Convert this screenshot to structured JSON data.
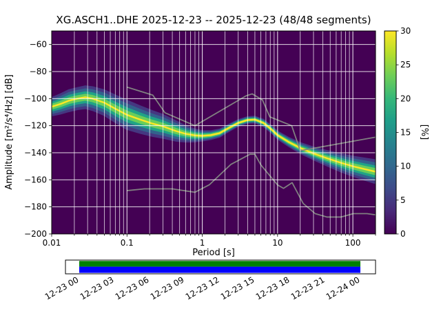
{
  "chart_data": {
    "type": "heatmap",
    "title": "XG.ASCH1..DHE   2025-12-23 -- 2025-12-23  (48/48 segments)",
    "xlabel": "Period [s]",
    "ylabel": "Amplitude [m²/s⁴/Hz] [dB]",
    "xscale": "log",
    "xlim": [
      0.01,
      200
    ],
    "ylim": [
      -200,
      -50
    ],
    "grid": true,
    "background_color": "#440154",
    "mode_color": "#fde725",
    "band_levels": [
      {
        "scale": 1.35,
        "color": "#453781"
      },
      {
        "scale": 1.0,
        "color": "#33628d"
      },
      {
        "scale": 0.65,
        "color": "#20a386"
      },
      {
        "scale": 0.35,
        "color": "#69cd5b"
      }
    ],
    "xticks": {
      "values": [
        0.01,
        0.1,
        1,
        10,
        100
      ],
      "labels": [
        "0.01",
        "0.1",
        "1",
        "10",
        "100"
      ]
    },
    "yticks": {
      "values": [
        -200,
        -180,
        -160,
        -140,
        -120,
        -100,
        -80,
        -60
      ],
      "labels": [
        "−200",
        "−180",
        "−160",
        "−140",
        "−120",
        "−100",
        "−80",
        "−60"
      ]
    },
    "colorbar": {
      "label": "[%]",
      "lim": [
        0,
        30
      ],
      "ticks": [
        0,
        5,
        10,
        15,
        20,
        25,
        30
      ],
      "tick_labels": [
        "0",
        "5",
        "10",
        "15",
        "20",
        "25",
        "30"
      ],
      "colors": [
        "#440154",
        "#482878",
        "#3e4a89",
        "#31688e",
        "#26828e",
        "#1f9e89",
        "#35b779",
        "#6ece58",
        "#b5de2b",
        "#fde725"
      ]
    },
    "psd_mode": {
      "name": "PSD probability ridge (mode)",
      "period_s": [
        0.01,
        0.013,
        0.017,
        0.022,
        0.028,
        0.035,
        0.05,
        0.07,
        0.1,
        0.15,
        0.22,
        0.3,
        0.45,
        0.6,
        0.8,
        1,
        1.3,
        1.7,
        2.2,
        3,
        4,
        5,
        6.5,
        8,
        10,
        14,
        20,
        30,
        45,
        70,
        100,
        140,
        200
      ],
      "db": [
        -106,
        -104,
        -101.5,
        -100,
        -99,
        -100,
        -103,
        -107.5,
        -112,
        -115.5,
        -118.5,
        -120.5,
        -124,
        -126,
        -127.2,
        -127.5,
        -127,
        -125.5,
        -122,
        -118,
        -115.8,
        -115.5,
        -118,
        -122,
        -127,
        -132,
        -136.5,
        -140.5,
        -144,
        -147.5,
        -150,
        -152,
        -154
      ],
      "spread_db": [
        5,
        5.5,
        6,
        6,
        6.2,
        6.5,
        7,
        7.5,
        8,
        7.5,
        7,
        6.5,
        5.5,
        4.5,
        3.5,
        2.8,
        2.4,
        2.2,
        2,
        1.8,
        1.8,
        1.8,
        2,
        2,
        2.2,
        2.5,
        3,
        3.5,
        4.2,
        5,
        5.5,
        6,
        6.5
      ]
    },
    "noise_models": [
      {
        "name": "NHNM",
        "color": "#808080",
        "period_s": [
          0.1,
          0.22,
          0.32,
          0.8,
          3.8,
          4.6,
          6.3,
          7.9,
          15.4,
          20,
          50,
          100,
          200
        ],
        "db": [
          -91.5,
          -97.4,
          -110.5,
          -120,
          -98,
          -96.5,
          -101,
          -113.5,
          -120,
          -138.5,
          -134.5,
          -131.5,
          -128.5
        ]
      },
      {
        "name": "NLNM",
        "color": "#808080",
        "period_s": [
          0.1,
          0.17,
          0.4,
          0.8,
          1.24,
          2.4,
          4.3,
          5,
          6,
          10,
          12,
          15.6,
          21.9,
          31.6,
          45,
          70,
          101,
          154,
          200
        ],
        "db": [
          -168,
          -166.7,
          -166.7,
          -169.2,
          -163.7,
          -148.6,
          -141.1,
          -141.1,
          -149,
          -163.8,
          -166.3,
          -162.1,
          -177.5,
          -185,
          -187.5,
          -187.5,
          -185,
          -185,
          -185.9
        ]
      }
    ],
    "timeline": {
      "labels": [
        "12-23 00",
        "12-23 03",
        "12-23 06",
        "12-23 09",
        "12-23 12",
        "12-23 15",
        "12-23 18",
        "12-23 21",
        "12-24 00"
      ],
      "processed_color": "#008000",
      "data_color": "#0000ff"
    }
  }
}
